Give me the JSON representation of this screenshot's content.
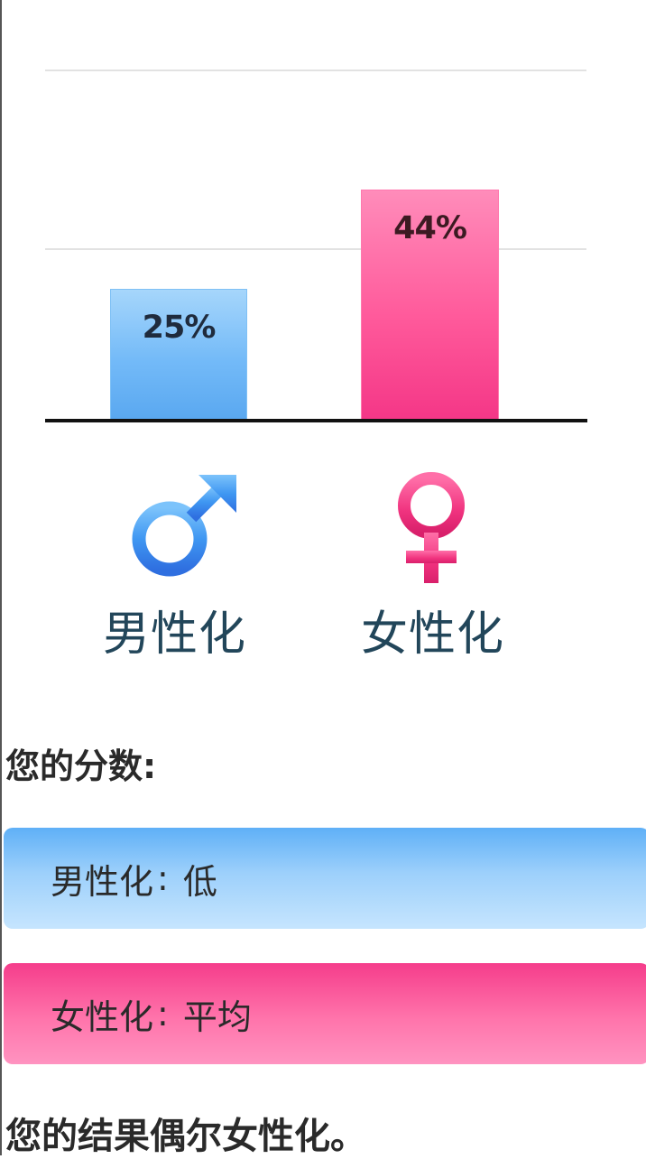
{
  "chart_data": {
    "type": "bar",
    "categories": [
      "男性化",
      "女性化"
    ],
    "values": [
      25,
      44
    ],
    "data_labels": [
      "25%",
      "44%"
    ],
    "ylim": [
      0,
      100
    ],
    "grid": true,
    "colors": [
      "#6fb6f7",
      "#ff5a9b"
    ]
  },
  "icons": {
    "male": "male-symbol-icon",
    "female": "female-symbol-icon"
  },
  "score_section": {
    "heading": "您的分数:",
    "masculine": {
      "label": "男性化",
      "separator": ":",
      "level": "低"
    },
    "feminine": {
      "label": "女性化",
      "separator": ":",
      "level": "平均"
    }
  },
  "conclusion": "您的结果偶尔女性化。",
  "colors": {
    "male_accent": "#5aa8f0",
    "female_accent": "#f43787",
    "label_text": "#22465a"
  }
}
